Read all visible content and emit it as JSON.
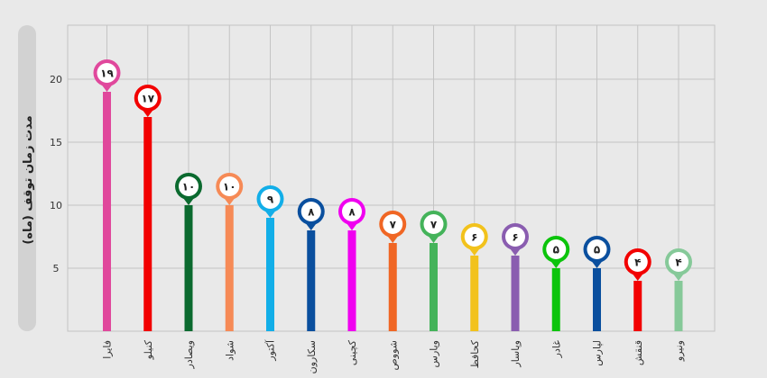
{
  "chart_data": {
    "type": "bar",
    "title": "",
    "xlabel": "",
    "ylabel": "مدت زمان توقف (ماه)",
    "ylim": [
      0,
      25
    ],
    "yticks": [
      5,
      10,
      15,
      20
    ],
    "grid": true,
    "categories": [
      "فایرا",
      "کنیلو",
      "ویصادر",
      "شواد",
      "آکتور",
      "سکارون",
      "کچینی",
      "شووص",
      "وپارس",
      "کحافظ",
      "وپاسار",
      "غادر",
      "لپارس",
      "قنقش",
      "ونیرو"
    ],
    "values": [
      19,
      17,
      10,
      10,
      9,
      8,
      8,
      7,
      7,
      6,
      6,
      5,
      5,
      4,
      4
    ],
    "value_labels": [
      "۱۹",
      "۱۷",
      "۱۰",
      "۱۰",
      "۹",
      "۸",
      "۸",
      "۷",
      "۷",
      "۶",
      "۶",
      "۵",
      "۵",
      "۴",
      "۴"
    ],
    "colors": [
      "#e0489c",
      "#f20000",
      "#0b6a2f",
      "#f68a56",
      "#12aee8",
      "#0a4f9e",
      "#f000f0",
      "#f06624",
      "#44b35a",
      "#f2c21c",
      "#8a5db0",
      "#0cc40c",
      "#0a4f9e",
      "#f20000",
      "#86c999"
    ]
  }
}
